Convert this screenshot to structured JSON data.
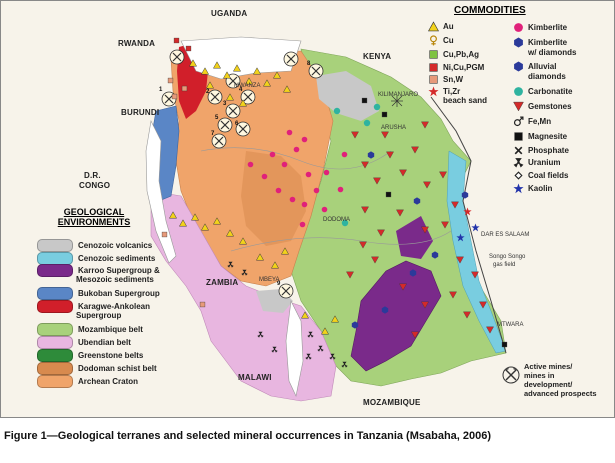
{
  "caption": "Figure 1—Geological terranes and selected mineral occurrences in Tanzania (Msabaha, 2006)",
  "countries": {
    "uganda": "UGANDA",
    "rwanda": "RWANDA",
    "burundi": "BURUNDI",
    "dr_congo_1": "D.R.",
    "dr_congo_2": "CONGO",
    "kenya": "KENYA",
    "zambia": "ZAMBIA",
    "malawi": "MALAWI",
    "mozambique": "MOZAMBIQUE"
  },
  "places": {
    "mwanza": "MWANZA",
    "kilimanjaro": "KILIMANJARO",
    "arusha": "ARUSHA",
    "dodoma": "DODOMA",
    "dar_es_salaam": "DAR ES SALAAM",
    "mbeya": "MBEYA",
    "mtwara": "MTWARA",
    "songo_songo_1": "Songo Songo",
    "songo_songo_2": "gas field"
  },
  "commodities": {
    "title": "COMMODITIES",
    "left": [
      {
        "label": "Au",
        "symbol": "triangle",
        "color": "#f2d21b"
      },
      {
        "label": "Cu",
        "symbol": "cu-mark",
        "color": "#b8860b"
      },
      {
        "label": "Cu,Pb,Ag",
        "symbol": "square",
        "color": "#7fc241"
      },
      {
        "label": "Ni,Cu,PGM",
        "symbol": "square",
        "color": "#d42a2a"
      },
      {
        "label": "Sn,W",
        "symbol": "square",
        "color": "#e79a7a"
      },
      {
        "label": "Ti,Zr",
        "symbol": "star",
        "color": "#d42a2a"
      },
      {
        "label": "beach sand",
        "symbol": "none",
        "color": ""
      }
    ],
    "right": [
      {
        "label": "Kimberlite",
        "symbol": "circle",
        "color": "#e0217a"
      },
      {
        "label": "Kimberlite",
        "symbol": "hexagon",
        "color": "#2b3a9a"
      },
      {
        "label": "w/ diamonds",
        "symbol": "none",
        "color": ""
      },
      {
        "label": "Alluvial",
        "symbol": "hexagon",
        "color": "#2b3a9a"
      },
      {
        "label": "diamonds",
        "symbol": "none",
        "color": ""
      },
      {
        "label": "Carbonatite",
        "symbol": "circle",
        "color": "#2fb3a0"
      },
      {
        "label": "Gemstones",
        "symbol": "inv-triangle",
        "color": "#d42a2a"
      },
      {
        "label": "Fe,Mn",
        "symbol": "male",
        "color": "#222222"
      },
      {
        "label": "Magnesite",
        "symbol": "square",
        "color": "#111111"
      },
      {
        "label": "Phosphate",
        "symbol": "x-mark",
        "color": "#222222"
      },
      {
        "label": "Uranium",
        "symbol": "uranium",
        "color": "#222222"
      },
      {
        "label": "Coal fields",
        "symbol": "diamond-small",
        "color": "#222222"
      },
      {
        "label": "Kaolin",
        "symbol": "star",
        "color": "#2233aa"
      }
    ]
  },
  "geological": {
    "title_1": "GEOLOGICAL",
    "title_2": "ENVIRONMENTS",
    "items": [
      {
        "label": "Cenozoic volcanics",
        "color": "#c8c8c8"
      },
      {
        "label": "Cenozoic sediments",
        "color": "#79cde0"
      },
      {
        "label": "Karroo Supergroup &",
        "color": "#7a2a8a"
      },
      {
        "label": "Mesozoic sediments",
        "color": ""
      },
      {
        "label": "Bukoban Supergroup",
        "color": "#5a86c6"
      },
      {
        "label": "Karagwe-Ankolean",
        "color": "#d11f2a"
      },
      {
        "label": "Supergroup",
        "color": ""
      },
      {
        "label": "Mozambique belt",
        "color": "#a8d17b"
      },
      {
        "label": "Ubendian belt",
        "color": "#e8b6e0"
      },
      {
        "label": "Greenstone belts",
        "color": "#2e8b3a"
      },
      {
        "label": "Dodoman schist belt",
        "color": "#d88a4e"
      },
      {
        "label": "Archean Craton",
        "color": "#f0a46a"
      }
    ]
  },
  "active_mines": {
    "line_1": "Active mines/",
    "line_2": "mines in",
    "line_3": "development/",
    "line_4": "advanced prospects"
  },
  "mine_labels": [
    "1",
    "2",
    "3",
    "4",
    "5",
    "6",
    "7",
    "8",
    "9"
  ]
}
